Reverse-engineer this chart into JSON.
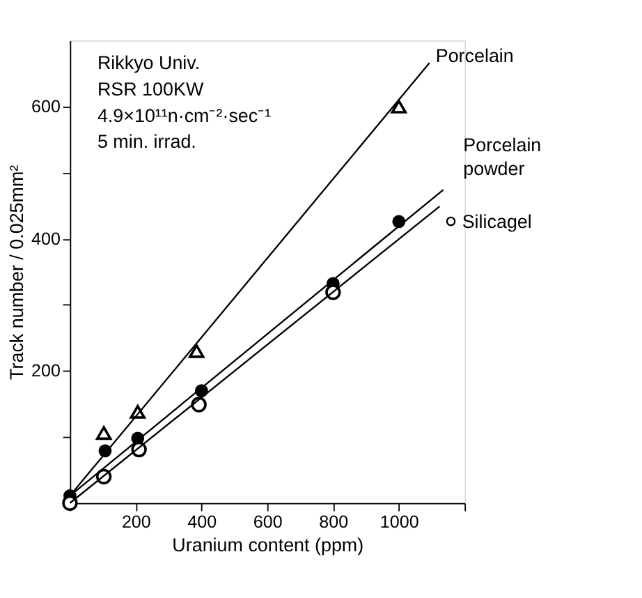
{
  "chart_data": {
    "type": "scatter",
    "xlabel": "Uranium content      (ppm)",
    "ylabel": "Track number / 0.025mm²",
    "xlim": [
      0,
      1200
    ],
    "ylim": [
      0,
      700
    ],
    "xticks": [
      {
        "value": 0,
        "label": null
      },
      200,
      400,
      600,
      800,
      1000,
      {
        "value": 1200,
        "label": null
      }
    ],
    "yticks": [
      {
        "value": 0,
        "label": null
      },
      {
        "value": 100,
        "label": null
      },
      200,
      {
        "value": 300,
        "label": null
      },
      400,
      {
        "value": 500,
        "label": null
      },
      600
    ],
    "grid": false,
    "series": [
      {
        "color": "#000000",
        "marker": "triangle",
        "x": [
          103,
          206,
          385,
          1000
        ],
        "values": [
          106,
          138,
          230,
          600
        ]
      },
      {
        "color": "#000000",
        "marker": "circle",
        "x": [
          0,
          107,
          206,
          400,
          800,
          1000
        ],
        "values": [
          11,
          79,
          98,
          170,
          332,
          426
        ]
      },
      {
        "color": "#000000",
        "marker": "circle",
        "x": [
          0,
          103,
          210,
          392,
          800
        ],
        "values": [
          0,
          40,
          81,
          149,
          319
        ]
      },
      {
        "type": "line",
        "name": "Porcelain",
        "color": "#000000",
        "line_style": "solid",
        "x": [
          0,
          1093
        ],
        "values": [
          11,
          666
        ]
      },
      {
        "type": "line",
        "name": "Porcelain powder",
        "color": "#000000",
        "line_style": "solid",
        "x": [
          0,
          1135
        ],
        "values": [
          11,
          474
        ]
      },
      {
        "type": "line",
        "name": "Silicagel",
        "color": "#000000",
        "line_style": "solid",
        "x": [
          0,
          1124
        ],
        "values": [
          0,
          449
        ]
      }
    ],
    "annotations": [
      "Rikkyo Univ.",
      "RSR 100KW",
      "4.9×10¹¹n·cm⁻²·sec⁻¹",
      "5 min. irrad."
    ]
  }
}
